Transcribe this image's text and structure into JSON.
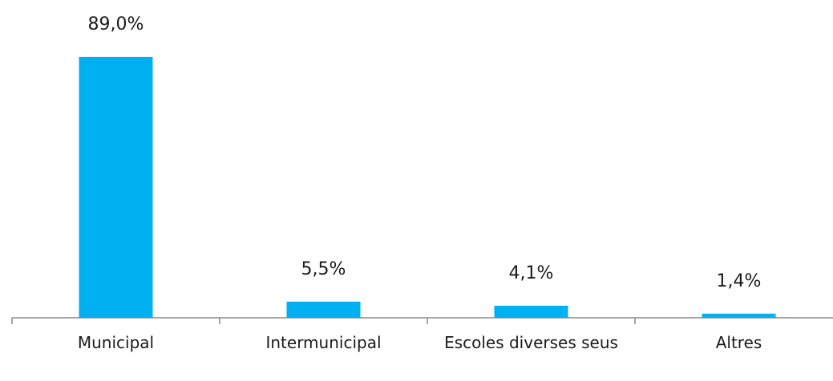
{
  "chart_data": {
    "type": "bar",
    "categories": [
      "Municipal",
      "Intermunicipal",
      "Escoles diverses seus",
      "Altres"
    ],
    "values": [
      89.0,
      5.5,
      4.1,
      1.4
    ],
    "value_labels": [
      "89,0%",
      "5,5%",
      "4,1%",
      "1,4%"
    ],
    "color": "#00b0f0"
  }
}
